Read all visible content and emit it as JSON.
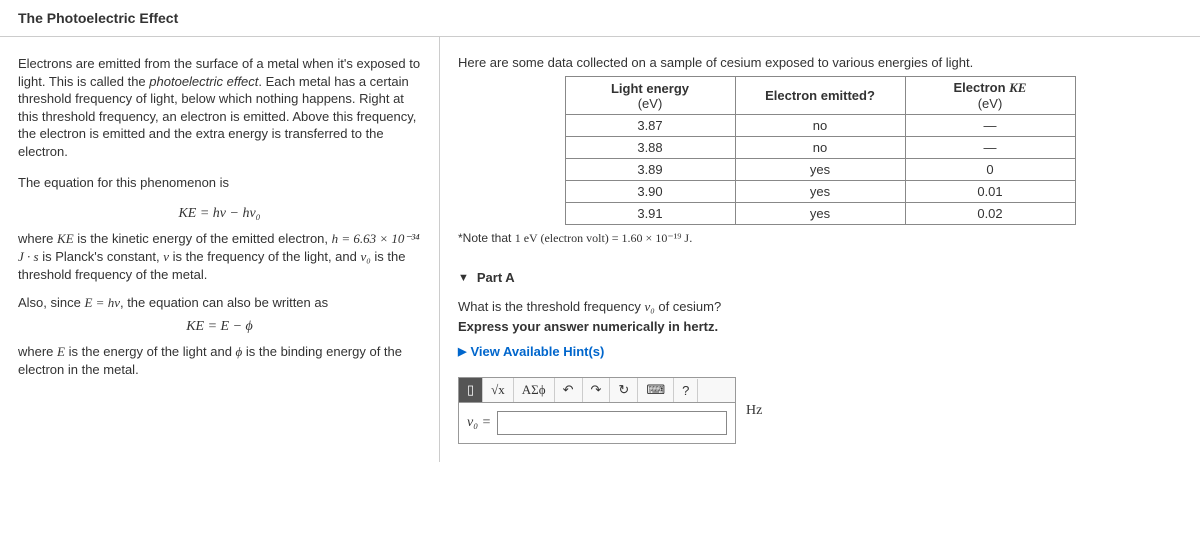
{
  "title": "The Photoelectric Effect",
  "left": {
    "p1a": "Electrons are emitted from the surface of a metal when it's exposed to light. This is called the ",
    "p1em": "photoelectric effect",
    "p1b": ". Each metal has a certain threshold frequency of light, below which nothing happens. Right at this threshold frequency, an electron is emitted. Above this frequency, the electron is emitted and the extra energy is transferred to the electron.",
    "p2": "The equation for this phenomenon is",
    "eq1": "KE = hν − hν₀",
    "where1a": "where ",
    "where1b": " is the kinetic energy of the emitted electron, ",
    "where1c": " is Planck's constant, ",
    "where1d": " is the frequency of the light, and ",
    "where1e": " is the threshold frequency of the metal.",
    "h_val": "h = 6.63 × 10⁻³⁴ J · s",
    "KE": "KE",
    "nu": "ν",
    "nu0": "ν₀",
    "p3a": "Also, since ",
    "p3eq": "E = hν",
    "p3b": ", the equation can also be written as",
    "eq2": "KE = E − ϕ",
    "where2a": "where ",
    "where2b": " is the energy of the light and ",
    "where2c": " is the binding energy of the electron in the metal.",
    "E": "E",
    "phi": "ϕ"
  },
  "right": {
    "intro": "Here are some data collected on a sample of cesium exposed to various energies of light.",
    "table": {
      "col1_header": "Light energy",
      "col1_unit": "(eV)",
      "col2_header": "Electron emitted?",
      "col3_header": "Electron ",
      "col3_var": "KE",
      "col3_unit": "(eV)",
      "rows": [
        {
          "energy": "3.87",
          "emitted": "no",
          "ke": "—"
        },
        {
          "energy": "3.88",
          "emitted": "no",
          "ke": "—"
        },
        {
          "energy": "3.89",
          "emitted": "yes",
          "ke": "0"
        },
        {
          "energy": "3.90",
          "emitted": "yes",
          "ke": "0.01"
        },
        {
          "energy": "3.91",
          "emitted": "yes",
          "ke": "0.02"
        }
      ]
    },
    "note_a": "*Note that ",
    "note_b": "1 eV (electron volt) = 1.60 × 10⁻¹⁹ J",
    "note_c": ".",
    "part_label": "Part A",
    "question_a": "What is the threshold frequency ",
    "question_var": "ν₀",
    "question_b": " of cesium?",
    "instruction": "Express your answer numerically in hertz.",
    "hints": "View Available Hint(s)",
    "toolbar": {
      "frac": "√x",
      "greek": "ΑΣϕ",
      "undo": "↶",
      "redo": "↷",
      "reset": "↻",
      "keyboard": "⌨",
      "help": "?"
    },
    "input_prefix": "ν₀ = ",
    "input_placeholder": "",
    "unit": "Hz"
  }
}
